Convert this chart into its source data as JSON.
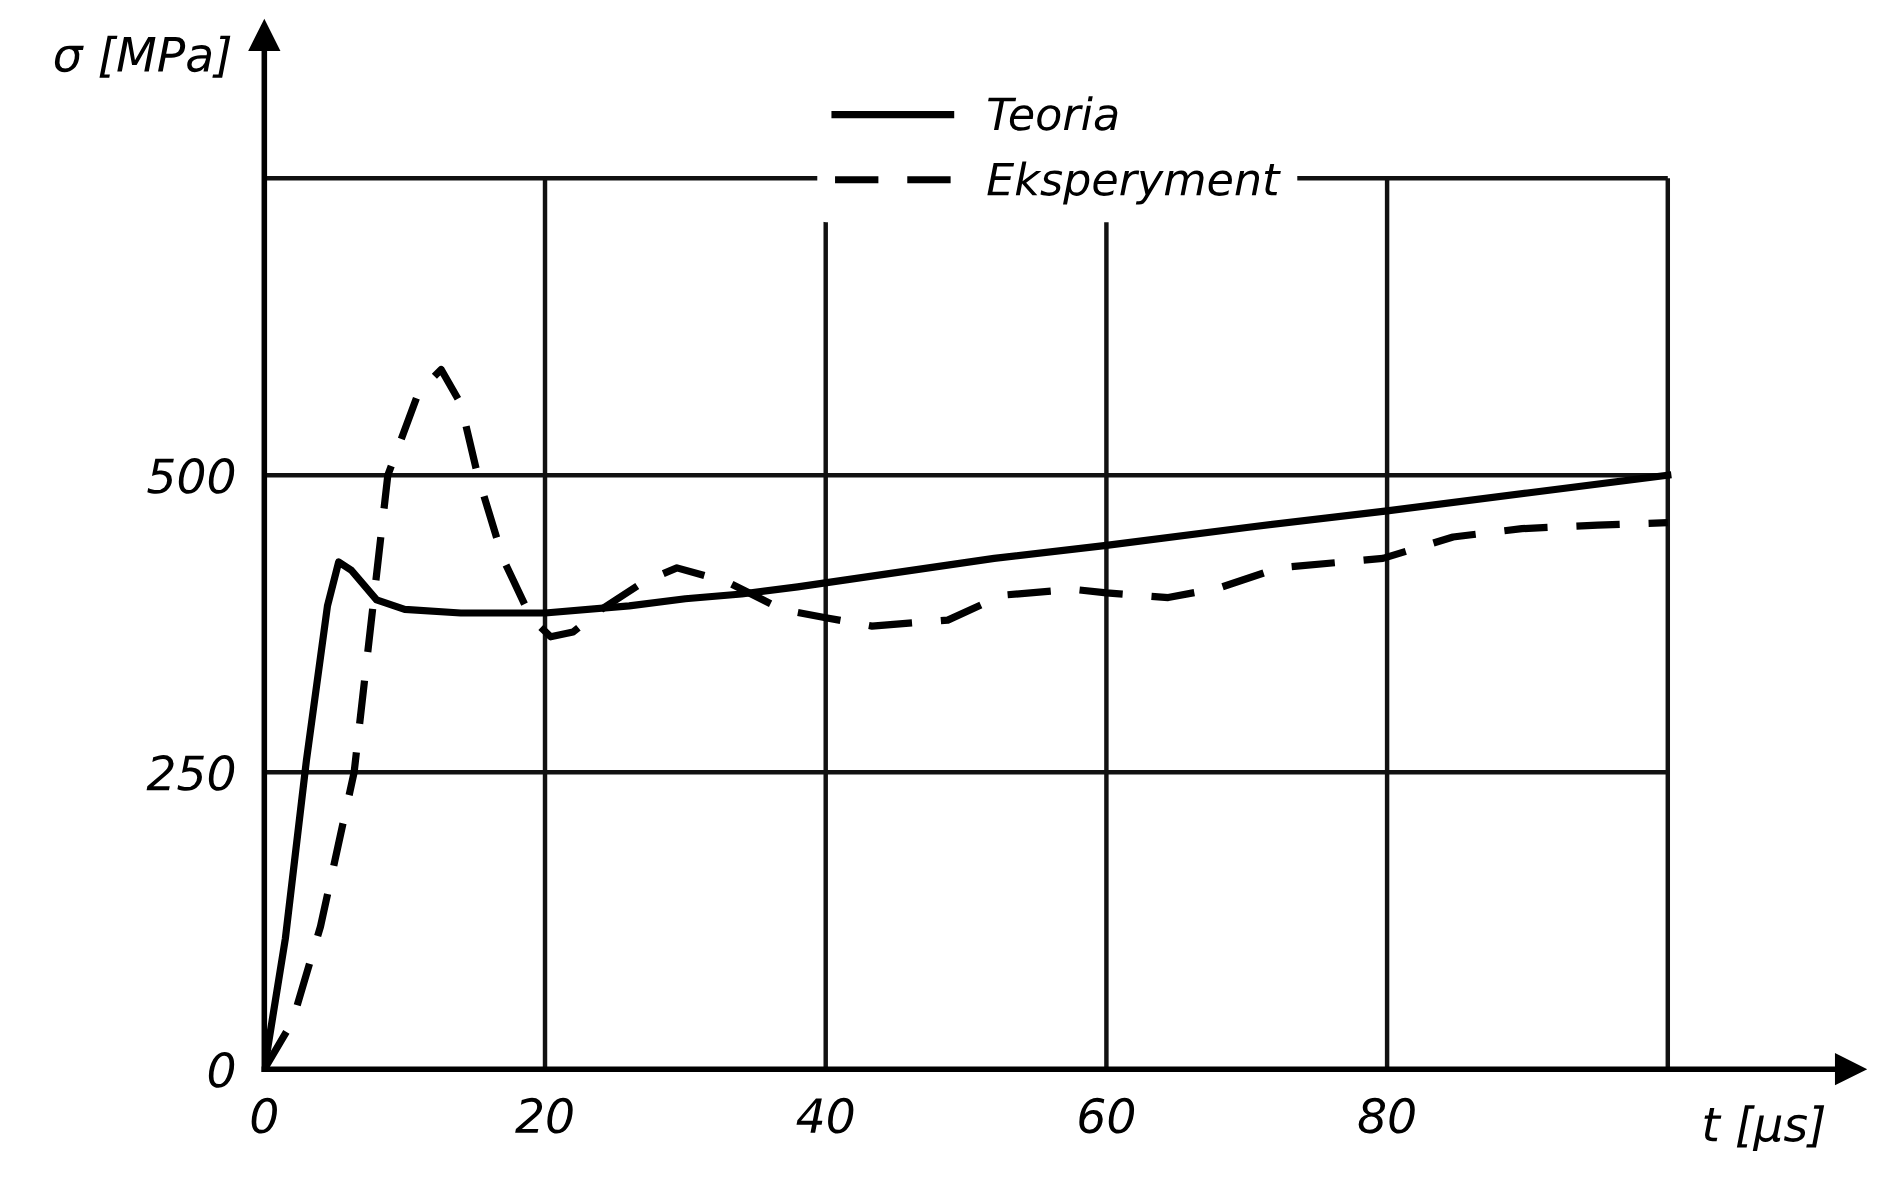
{
  "chart_data": {
    "type": "line",
    "ylabel": "σ [MPa]",
    "xlabel": "t [μs]",
    "xlim": [
      0,
      113
    ],
    "ylim": [
      0,
      870
    ],
    "xticks": [
      0,
      20,
      40,
      60,
      80,
      {
        "value": 100,
        "label": null
      }
    ],
    "yticks": [
      0,
      250,
      500,
      {
        "value": 750,
        "label": null
      }
    ],
    "grid": true,
    "legend": "top",
    "series": [
      {
        "name": "Teoria",
        "color": "#000000",
        "line_style": "solid",
        "x": [
          0,
          1.5,
          3,
          4.5,
          5.3,
          6.2,
          8,
          10,
          14,
          20,
          26,
          30,
          34,
          38,
          45,
          52,
          60,
          70,
          80,
          90,
          100
        ],
        "values": [
          0,
          110,
          260,
          390,
          427,
          420,
          395,
          387,
          384,
          384,
          390,
          396,
          400,
          406,
          418,
          430,
          441,
          456,
          470,
          485,
          500
        ]
      },
      {
        "name": "Eksperyment",
        "color": "#000000",
        "line_style": "dashed",
        "x": [
          0,
          2,
          4,
          6.4,
          8.8,
          11,
          12.6,
          14,
          15.2,
          17,
          19,
          20.4,
          22,
          24,
          27,
          29.4,
          33,
          36.9,
          40,
          43.3,
          48.7,
          52.6,
          57.6,
          60,
          64.4,
          68,
          72.3,
          79.7,
          84.7,
          89.6,
          95,
          100
        ],
        "values": [
          0,
          40,
          120,
          250,
          500,
          570,
          589,
          560,
          500,
          430,
          380,
          364,
          368,
          387,
          410,
          422,
          410,
          387,
          380,
          373,
          378,
          399,
          404,
          401,
          397,
          405,
          422,
          430,
          448,
          455,
          458,
          460
        ]
      }
    ]
  }
}
